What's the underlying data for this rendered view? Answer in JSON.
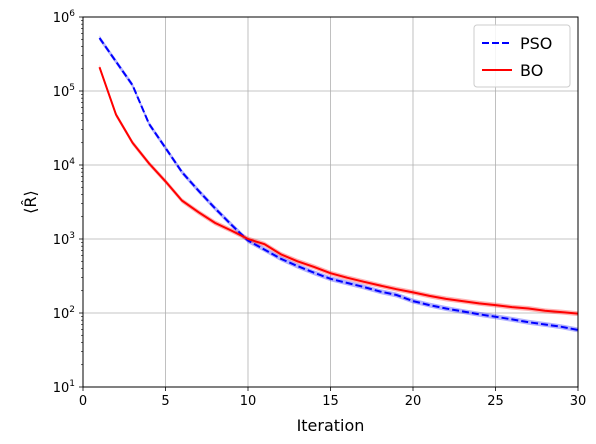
{
  "chart_data": {
    "type": "line",
    "xlabel": "Iteration",
    "ylabel": "⟨R̂⟩",
    "xlim": [
      0,
      30
    ],
    "ylim": [
      10,
      1000000
    ],
    "yscale": "log",
    "grid": true,
    "legend_position": "top-right",
    "x_ticks": [
      0,
      5,
      10,
      15,
      20,
      25,
      30
    ],
    "y_ticks": [
      {
        "value": 10,
        "base": "10",
        "exp": "1"
      },
      {
        "value": 100,
        "base": "10",
        "exp": "2"
      },
      {
        "value": 1000,
        "base": "10",
        "exp": "3"
      },
      {
        "value": 10000,
        "base": "10",
        "exp": "4"
      },
      {
        "value": 100000,
        "base": "10",
        "exp": "5"
      },
      {
        "value": 1000000,
        "base": "10",
        "exp": "6"
      }
    ],
    "x": [
      1,
      2,
      3,
      4,
      5,
      6,
      7,
      8,
      9,
      10,
      11,
      12,
      13,
      14,
      15,
      16,
      17,
      18,
      19,
      20,
      21,
      22,
      23,
      24,
      25,
      26,
      27,
      28,
      29,
      30
    ],
    "series": [
      {
        "name": "PSO",
        "color": "#0000ff",
        "dash": "dashed",
        "values": [
          520000,
          250000,
          120000,
          36000,
          17000,
          8000,
          4500,
          2600,
          1550,
          950,
          720,
          540,
          430,
          350,
          290,
          255,
          225,
          195,
          175,
          145,
          128,
          115,
          105,
          96,
          89,
          82,
          75,
          70,
          65,
          59
        ]
      },
      {
        "name": "BO",
        "color": "#ff0000",
        "dash": "solid",
        "values": [
          210000,
          48000,
          20000,
          10500,
          6000,
          3300,
          2300,
          1650,
          1300,
          1000,
          850,
          620,
          500,
          420,
          345,
          300,
          265,
          235,
          210,
          190,
          170,
          155,
          145,
          135,
          128,
          120,
          115,
          107,
          103,
          98
        ]
      }
    ]
  }
}
